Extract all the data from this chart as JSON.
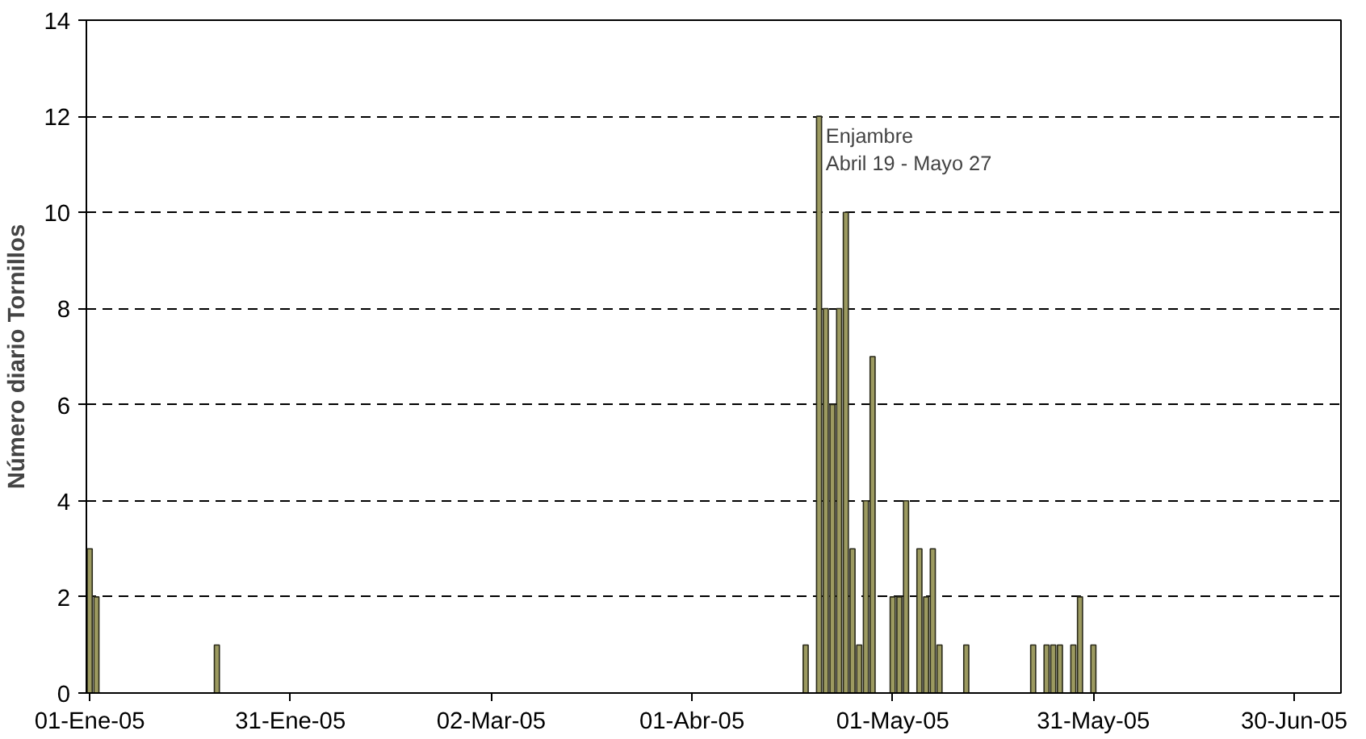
{
  "chart_data": {
    "type": "bar",
    "ylabel": "Número diario Tornillos",
    "x": [
      "2005-01-01",
      "2005-01-02",
      "2005-01-20",
      "2005-04-18",
      "2005-04-20",
      "2005-04-21",
      "2005-04-22",
      "2005-04-23",
      "2005-04-24",
      "2005-04-25",
      "2005-04-26",
      "2005-04-27",
      "2005-04-28",
      "2005-05-01",
      "2005-05-02",
      "2005-05-03",
      "2005-05-05",
      "2005-05-06",
      "2005-05-07",
      "2005-05-08",
      "2005-05-12",
      "2005-05-22",
      "2005-05-24",
      "2005-05-25",
      "2005-05-26",
      "2005-05-28",
      "2005-05-29",
      "2005-05-31"
    ],
    "values": [
      3,
      2,
      1,
      1,
      12,
      8,
      6,
      8,
      10,
      3,
      1,
      4,
      7,
      2,
      2,
      4,
      3,
      2,
      3,
      1,
      1,
      1,
      1,
      1,
      1,
      1,
      2,
      1
    ],
    "color": "#9c9a60",
    "xlim": [
      "2004-12-31T12:00",
      "2005-07-07"
    ],
    "xticks": [
      {
        "value": "2005-01-01",
        "label": "01-Ene-05"
      },
      {
        "value": "2005-01-31",
        "label": "31-Ene-05"
      },
      {
        "value": "2005-03-02",
        "label": "02-Mar-05"
      },
      {
        "value": "2005-04-01",
        "label": "01-Abr-05"
      },
      {
        "value": "2005-05-01",
        "label": "01-May-05"
      },
      {
        "value": "2005-05-31",
        "label": "31-May-05"
      },
      {
        "value": "2005-06-30",
        "label": "30-Jun-05"
      }
    ],
    "ylim": [
      0,
      14
    ],
    "yticks": [
      0,
      2,
      4,
      6,
      8,
      10,
      12,
      14
    ],
    "grid": "y",
    "annotations": [
      {
        "text": "Enjambre\nAbril 19 - Mayo 27",
        "x": "2005-04-21",
        "y": 11.3
      }
    ]
  }
}
